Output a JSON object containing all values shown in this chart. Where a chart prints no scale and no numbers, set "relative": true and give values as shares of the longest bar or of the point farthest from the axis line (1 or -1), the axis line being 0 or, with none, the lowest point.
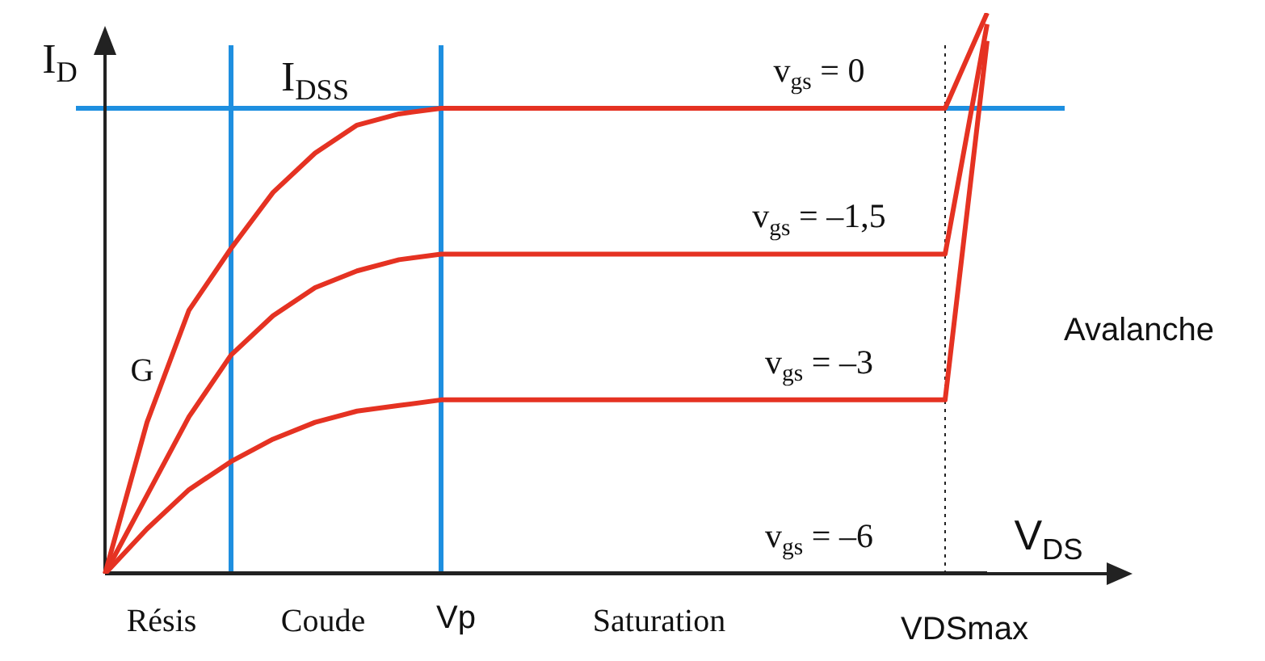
{
  "chart_data": {
    "type": "line",
    "relative": true,
    "xlabel": "V$_{DS}$",
    "ylabel": "I$_{D}$",
    "categories": [
      null,
      null,
      null,
      null,
      null,
      null,
      null,
      null,
      null,
      null,
      null,
      null,
      null,
      null,
      null,
      null,
      null,
      null,
      null,
      null,
      null,
      null,
      null,
      null,
      null
    ],
    "series": [
      {
        "name": "v$_{gs}$ = 0",
        "color": "#e53222",
        "values": [
          0,
          0.27,
          0.47,
          0.58,
          0.68,
          0.75,
          0.8,
          0.82,
          0.83,
          0.83,
          0.83,
          0.83,
          0.83,
          0.83,
          0.83,
          0.83,
          0.83,
          0.83,
          0.83,
          0.83,
          0.83,
          1,
          null,
          null,
          null
        ]
      },
      {
        "name": "v$_{gs}$ = –1,5",
        "color": "#e53222",
        "values": [
          0,
          0.14,
          0.28,
          0.39,
          0.46,
          0.51,
          0.54,
          0.56,
          0.57,
          0.57,
          0.57,
          0.57,
          0.57,
          0.57,
          0.57,
          0.57,
          0.57,
          0.57,
          0.57,
          0.57,
          0.57,
          0.98,
          null,
          null,
          null
        ]
      },
      {
        "name": "v$_{gs}$ = –3",
        "color": "#e53222",
        "values": [
          0,
          0.08,
          0.15,
          0.2,
          0.24,
          0.27,
          0.29,
          0.3,
          0.31,
          0.31,
          0.31,
          0.31,
          0.31,
          0.31,
          0.31,
          0.31,
          0.31,
          0.31,
          0.31,
          0.31,
          0.31,
          0.95,
          null,
          null,
          null
        ]
      },
      {
        "name": "v$_{gs}$ = –6",
        "color": "#222222",
        "values": [
          0,
          0,
          0,
          0,
          0,
          0,
          0,
          0,
          0,
          0,
          0,
          0,
          0,
          0,
          0,
          0,
          0,
          0,
          0,
          0,
          0,
          0,
          null,
          null,
          null
        ]
      }
    ],
    "ref_lines": [
      {
        "axis": "y",
        "value": 0.83,
        "label": "I$_{DSS}$",
        "color": "#1e8fe0",
        "line_style": "solid"
      }
    ],
    "annotations": [
      "G",
      "Résis",
      "Coude",
      "Vp",
      "Saturation",
      "Avalanche",
      "VDSmax"
    ],
    "legend": false,
    "marker": "none",
    "line_style": "solid"
  }
}
